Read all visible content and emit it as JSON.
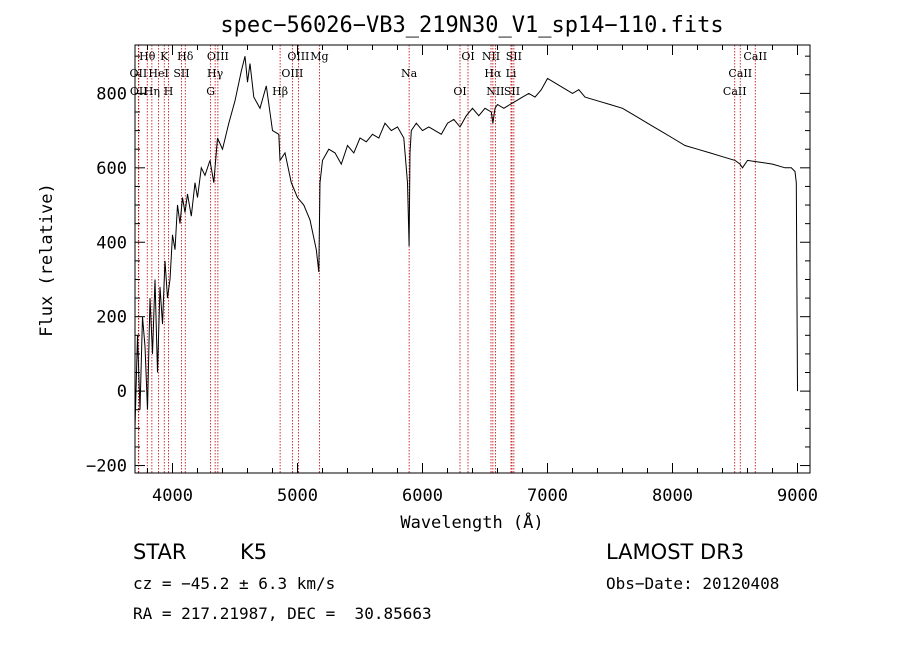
{
  "footer": {
    "object_class": "STAR",
    "subclass": "K5",
    "survey": "LAMOST DR3",
    "velocity": "cz = −45.2 ± 6.3 km/s",
    "obs_date": "Obs−Date: 20120408",
    "coords": "RA = 217.21987, DEC =  30.85663"
  },
  "chart_data": {
    "type": "line",
    "title": "spec−56026−VB3_219N30_V1_sp14−110.fits",
    "xlabel": "Wavelength (Å)",
    "ylabel": "Flux (relative)",
    "xlim": [
      3700,
      9100
    ],
    "ylim": [
      -220,
      930
    ],
    "xticks": [
      4000,
      5000,
      6000,
      7000,
      8000,
      9000
    ],
    "yticks": [
      -200,
      0,
      200,
      400,
      600,
      800
    ],
    "ytick_labels": [
      "−200",
      "0",
      "200",
      "400",
      "600",
      "800"
    ],
    "line_color": "#000000",
    "marker_color": "#c00000",
    "series": [
      {
        "name": "flux",
        "x": [
          3700,
          3720,
          3740,
          3760,
          3780,
          3800,
          3820,
          3840,
          3860,
          3880,
          3900,
          3920,
          3940,
          3960,
          3980,
          4000,
          4020,
          4040,
          4060,
          4080,
          4100,
          4120,
          4150,
          4180,
          4200,
          4230,
          4260,
          4300,
          4330,
          4360,
          4400,
          4450,
          4500,
          4550,
          4580,
          4600,
          4620,
          4650,
          4700,
          4750,
          4800,
          4850,
          4860,
          4900,
          4950,
          5000,
          5050,
          5100,
          5150,
          5170,
          5180,
          5200,
          5250,
          5300,
          5350,
          5400,
          5450,
          5500,
          5550,
          5600,
          5650,
          5700,
          5750,
          5800,
          5850,
          5880,
          5893,
          5900,
          5910,
          5950,
          6000,
          6050,
          6100,
          6150,
          6200,
          6250,
          6300,
          6350,
          6400,
          6450,
          6500,
          6550,
          6563,
          6580,
          6600,
          6650,
          6700,
          6750,
          6800,
          6850,
          6900,
          6950,
          7000,
          7050,
          7100,
          7150,
          7200,
          7250,
          7300,
          7400,
          7500,
          7600,
          7700,
          7800,
          7900,
          8000,
          8100,
          8200,
          8300,
          8400,
          8500,
          8540,
          8560,
          8600,
          8700,
          8800,
          8900,
          8950,
          8980,
          8990,
          9000
        ],
        "y": [
          -100,
          150,
          -50,
          200,
          120,
          -50,
          250,
          100,
          300,
          50,
          280,
          180,
          350,
          250,
          300,
          420,
          380,
          500,
          450,
          520,
          480,
          530,
          470,
          560,
          520,
          600,
          580,
          620,
          560,
          680,
          650,
          720,
          780,
          860,
          900,
          830,
          880,
          790,
          760,
          820,
          700,
          690,
          620,
          640,
          560,
          520,
          500,
          460,
          380,
          320,
          560,
          620,
          650,
          640,
          610,
          660,
          640,
          680,
          670,
          690,
          680,
          720,
          700,
          710,
          680,
          560,
          390,
          640,
          700,
          720,
          700,
          710,
          700,
          690,
          720,
          730,
          710,
          740,
          760,
          740,
          760,
          750,
          720,
          760,
          770,
          760,
          770,
          780,
          790,
          800,
          790,
          810,
          840,
          830,
          820,
          810,
          800,
          810,
          790,
          780,
          770,
          760,
          740,
          720,
          700,
          680,
          660,
          650,
          640,
          630,
          620,
          610,
          600,
          620,
          615,
          610,
          600,
          600,
          590,
          560,
          0
        ]
      }
    ],
    "spectral_lines": [
      {
        "label": "Hθ",
        "wl": 3798
      },
      {
        "label": "OII",
        "wl": 3727
      },
      {
        "label": "OII",
        "wl": 3730
      },
      {
        "label": "K",
        "wl": 3934
      },
      {
        "label": "HeI",
        "wl": 3889
      },
      {
        "label": "Hη",
        "wl": 3835
      },
      {
        "label": "Hδ",
        "wl": 4102
      },
      {
        "label": "SII",
        "wl": 4072
      },
      {
        "label": "H",
        "wl": 3968
      },
      {
        "label": "OIII",
        "wl": 4363
      },
      {
        "label": "Hγ",
        "wl": 4341
      },
      {
        "label": "G",
        "wl": 4305
      },
      {
        "label": "OIII",
        "wl": 5007
      },
      {
        "label": "OIII",
        "wl": 4959
      },
      {
        "label": "Hβ",
        "wl": 4861
      },
      {
        "label": "Mg",
        "wl": 5175
      },
      {
        "label": "Na",
        "wl": 5893
      },
      {
        "label": "OI",
        "wl": 6300
      },
      {
        "label": "OI",
        "wl": 6364
      },
      {
        "label": "Hα",
        "wl": 6563
      },
      {
        "label": "SII",
        "wl": 6716
      },
      {
        "label": "NII",
        "wl": 6548
      },
      {
        "label": "Li",
        "wl": 6708
      },
      {
        "label": "NII",
        "wl": 6583
      },
      {
        "label": "SII",
        "wl": 6731
      },
      {
        "label": "CaII",
        "wl": 8542
      },
      {
        "label": "CaII",
        "wl": 8498
      },
      {
        "label": "CaII",
        "wl": 8662
      }
    ]
  }
}
